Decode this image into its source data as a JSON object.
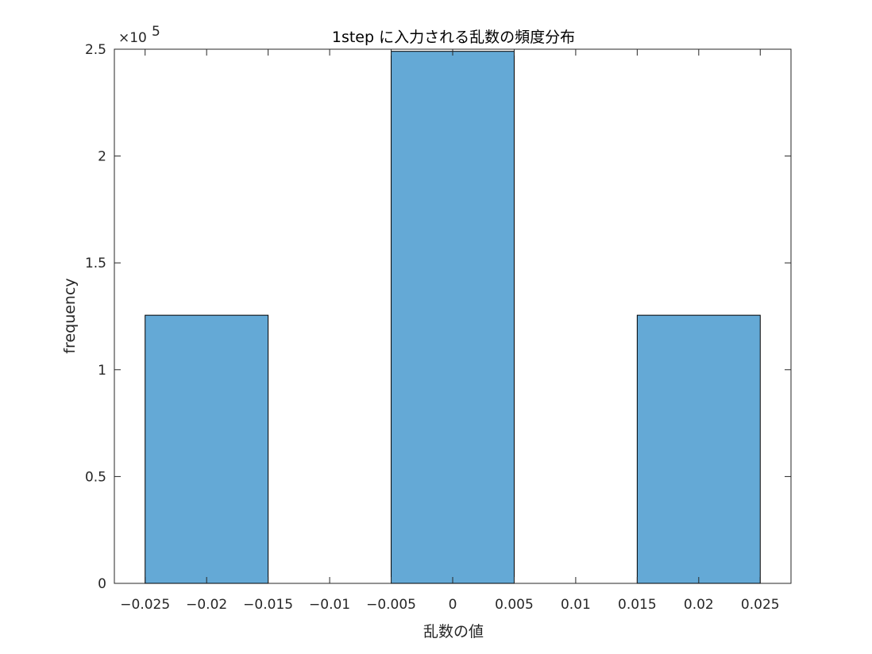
{
  "chart_data": {
    "type": "bar",
    "title": "1step に入力される乱数の頻度分布",
    "xlabel": "乱数の値",
    "ylabel": "frequency",
    "y_exponent_label": "×10",
    "y_exponent_power": "5",
    "xlim": [
      -0.0275,
      0.0275
    ],
    "ylim": [
      0,
      250000
    ],
    "bin_width": 0.01,
    "bins": [
      {
        "center": -0.02,
        "value": 125500
      },
      {
        "center": 0.0,
        "value": 249000
      },
      {
        "center": 0.02,
        "value": 125500
      }
    ],
    "x_ticks": [
      -0.025,
      -0.02,
      -0.015,
      -0.01,
      -0.005,
      0,
      0.005,
      0.01,
      0.015,
      0.02,
      0.025
    ],
    "x_tick_labels": [
      "−0.025",
      "−0.02",
      "−0.015",
      "−0.01",
      "−0.005",
      "0",
      "0.005",
      "0.01",
      "0.015",
      "0.02",
      "0.025"
    ],
    "y_ticks": [
      0,
      50000,
      100000,
      150000,
      200000,
      250000
    ],
    "y_tick_labels": [
      "0",
      "0.5",
      "1",
      "1.5",
      "2",
      "2.5"
    ],
    "grid": false,
    "colors": {
      "bar_fill": "#64a9d6",
      "bar_edge": "#000000",
      "axis": "#262626"
    }
  }
}
